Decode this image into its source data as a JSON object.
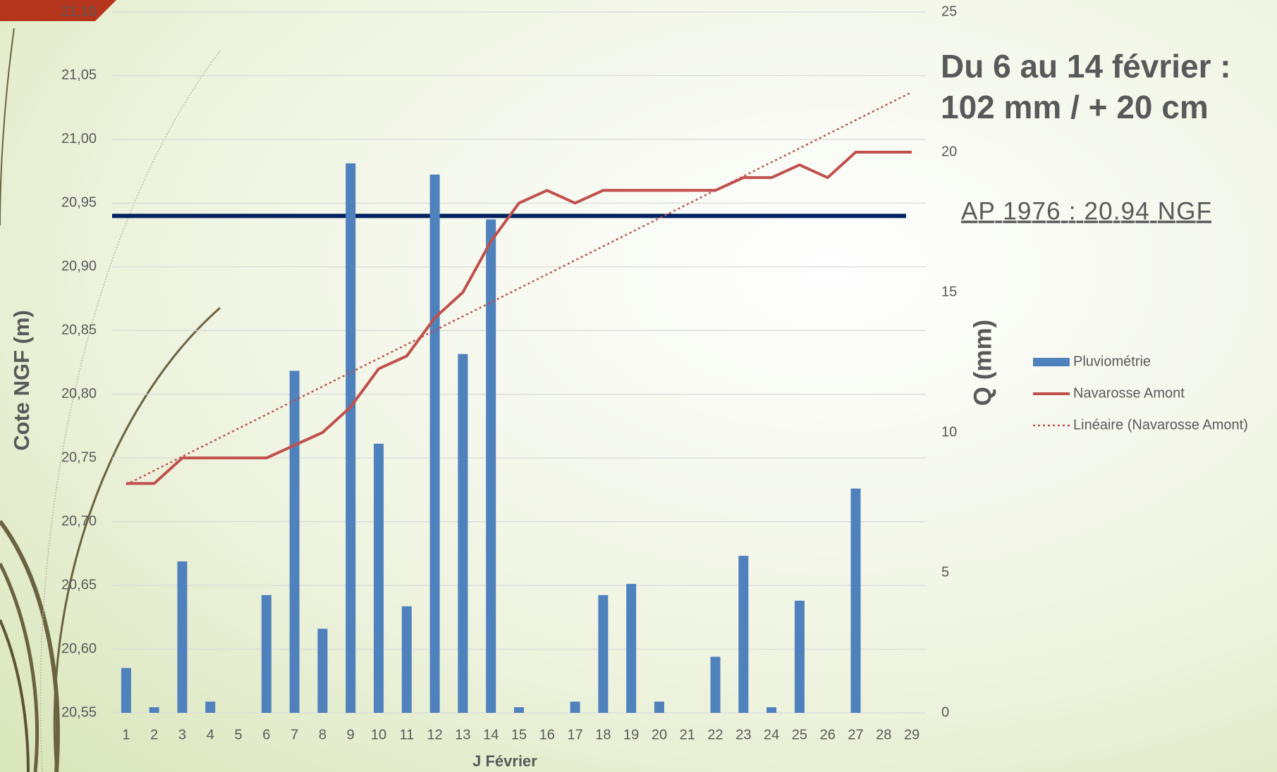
{
  "chart_data": {
    "type": "combo",
    "annotation": [
      "Du 6 au 14 février :",
      "102 mm / + 20 cm"
    ],
    "x_label": "J Février",
    "y_label": "Cote NGF (m)",
    "y2_label": "Q (mm)",
    "categories": [
      "1",
      "2",
      "3",
      "4",
      "5",
      "6",
      "7",
      "8",
      "9",
      "10",
      "11",
      "12",
      "13",
      "14",
      "15",
      "16",
      "17",
      "18",
      "19",
      "20",
      "21",
      "22",
      "23",
      "24",
      "25",
      "26",
      "27",
      "28",
      "29"
    ],
    "series": [
      {
        "name": "Pluviométrie",
        "type": "bar",
        "axis": "y2",
        "color": "#4f81bd",
        "values": [
          1.6,
          0.2,
          5.4,
          0.4,
          0,
          4.2,
          12.2,
          3.0,
          19.6,
          9.6,
          3.8,
          19.2,
          12.8,
          17.6,
          0.2,
          0,
          0.4,
          4.2,
          4.6,
          0.4,
          0,
          2.0,
          5.6,
          0.2,
          4.0,
          0,
          8.0,
          0,
          0
        ]
      },
      {
        "name": "Navarosse Amont",
        "type": "line",
        "axis": "y",
        "color": "#c0504d",
        "values": [
          20.73,
          20.73,
          20.75,
          20.75,
          20.75,
          20.75,
          20.76,
          20.77,
          20.79,
          20.82,
          20.83,
          20.86,
          20.88,
          20.92,
          20.95,
          20.96,
          20.95,
          20.96,
          20.96,
          20.96,
          20.96,
          20.96,
          20.97,
          20.97,
          20.98,
          20.97,
          20.99,
          20.99,
          20.99
        ],
        "trendline": {
          "type": "linear",
          "name": "Linéaire (Navarosse Amont)"
        }
      }
    ],
    "reference_line": {
      "value": 20.94,
      "label": "AP 1976 : 20.94 NGF",
      "color": "#002060"
    },
    "ylim": [
      20.55,
      21.1
    ],
    "yticks": [
      {
        "value": 20.55,
        "label": "20,55"
      },
      {
        "value": 20.6,
        "label": "20,60"
      },
      {
        "value": 20.65,
        "label": "20,65"
      },
      {
        "value": 20.7,
        "label": "20,70"
      },
      {
        "value": 20.75,
        "label": "20,75"
      },
      {
        "value": 20.8,
        "label": "20,80"
      },
      {
        "value": 20.85,
        "label": "20,85"
      },
      {
        "value": 20.9,
        "label": "20,90"
      },
      {
        "value": 20.95,
        "label": "20,95"
      },
      {
        "value": 21.0,
        "label": "21,00"
      },
      {
        "value": 21.05,
        "label": "21,05"
      },
      {
        "value": 21.1,
        "label": "21,10"
      }
    ],
    "y2lim": [
      0,
      25
    ],
    "y2ticks": [
      0,
      5,
      10,
      15,
      20,
      25
    ],
    "grid": true
  }
}
